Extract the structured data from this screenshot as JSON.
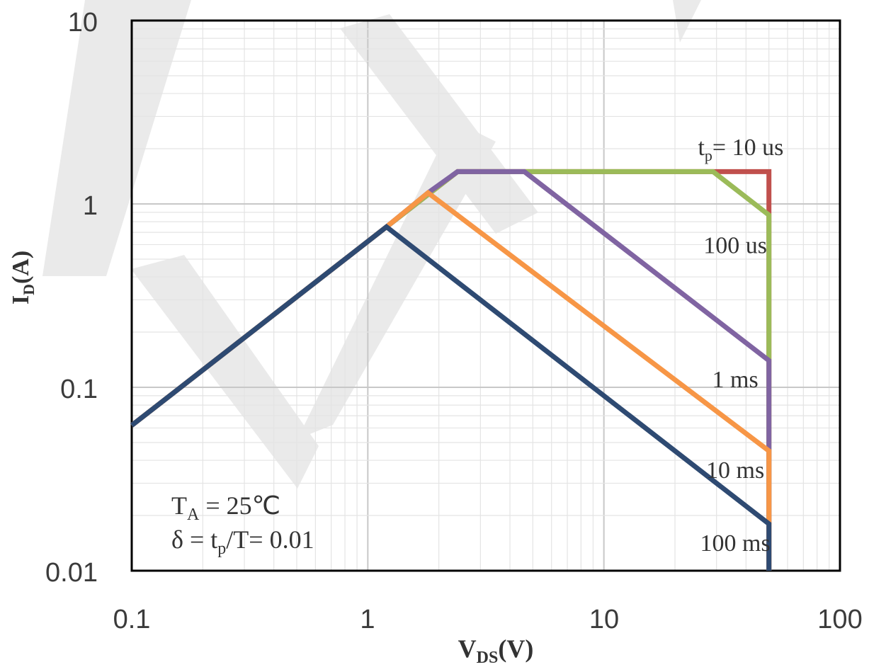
{
  "chart_data": {
    "type": "line",
    "title": "",
    "xscale": "log",
    "yscale": "log",
    "xlim": [
      0.1,
      100
    ],
    "ylim": [
      0.01,
      10
    ],
    "grid": true,
    "x_ticks": [
      "0.1",
      "1",
      "10",
      "100"
    ],
    "y_ticks": [
      "10",
      "1",
      "0.1",
      "0.01"
    ],
    "xlabel": {
      "main": "V",
      "sub": "DS",
      "tail": "(V)"
    },
    "ylabel": {
      "main": "I",
      "sub": "D",
      "tail": "(A)"
    },
    "series": [
      {
        "name": "tp= 10 us",
        "color": "#c0504d",
        "points": [
          [
            0.1,
            0.062
          ],
          [
            1.2,
            0.75
          ],
          [
            2.4,
            1.5
          ],
          [
            50,
            1.5
          ],
          [
            50,
            0.01
          ]
        ]
      },
      {
        "name": "100 us",
        "color": "#9bbb59",
        "points": [
          [
            0.1,
            0.062
          ],
          [
            1.2,
            0.75
          ],
          [
            2.4,
            1.5
          ],
          [
            29,
            1.5
          ],
          [
            50,
            0.87
          ],
          [
            50,
            0.01
          ]
        ]
      },
      {
        "name": "1 ms",
        "color": "#8064a2",
        "points": [
          [
            0.1,
            0.062
          ],
          [
            1.2,
            0.75
          ],
          [
            1.8,
            1.15
          ],
          [
            2.4,
            1.5
          ],
          [
            4.6,
            1.5
          ],
          [
            50,
            0.14
          ],
          [
            50,
            0.01
          ]
        ]
      },
      {
        "name": "10 ms",
        "color": "#f79646",
        "points": [
          [
            0.1,
            0.062
          ],
          [
            1.2,
            0.75
          ],
          [
            1.8,
            1.15
          ],
          [
            50,
            0.045
          ],
          [
            50,
            0.01
          ]
        ]
      },
      {
        "name": "100 ms",
        "color": "#2e4a72",
        "points": [
          [
            0.1,
            0.062
          ],
          [
            1.2,
            0.75
          ],
          [
            50,
            0.018
          ],
          [
            50,
            0.01
          ]
        ]
      }
    ],
    "curve_labels": [
      {
        "main": "t",
        "sub": "p",
        "tail": "= 10 us",
        "x": 38,
        "y": 1.85
      },
      {
        "text": "100 us",
        "x": 36,
        "y": 0.54
      },
      {
        "text": "1 ms",
        "x": 36,
        "y": 0.1
      },
      {
        "text": "10 ms",
        "x": 36,
        "y": 0.032
      },
      {
        "text": "100 ms",
        "x": 36,
        "y": 0.0128
      }
    ],
    "annotations": {
      "line1": {
        "main": "T",
        "sub": "A",
        "tail": " = 25℃"
      },
      "line2": {
        "prefix": "δ = t",
        "sub": "p",
        "tail": "/T= 0.01"
      }
    }
  }
}
